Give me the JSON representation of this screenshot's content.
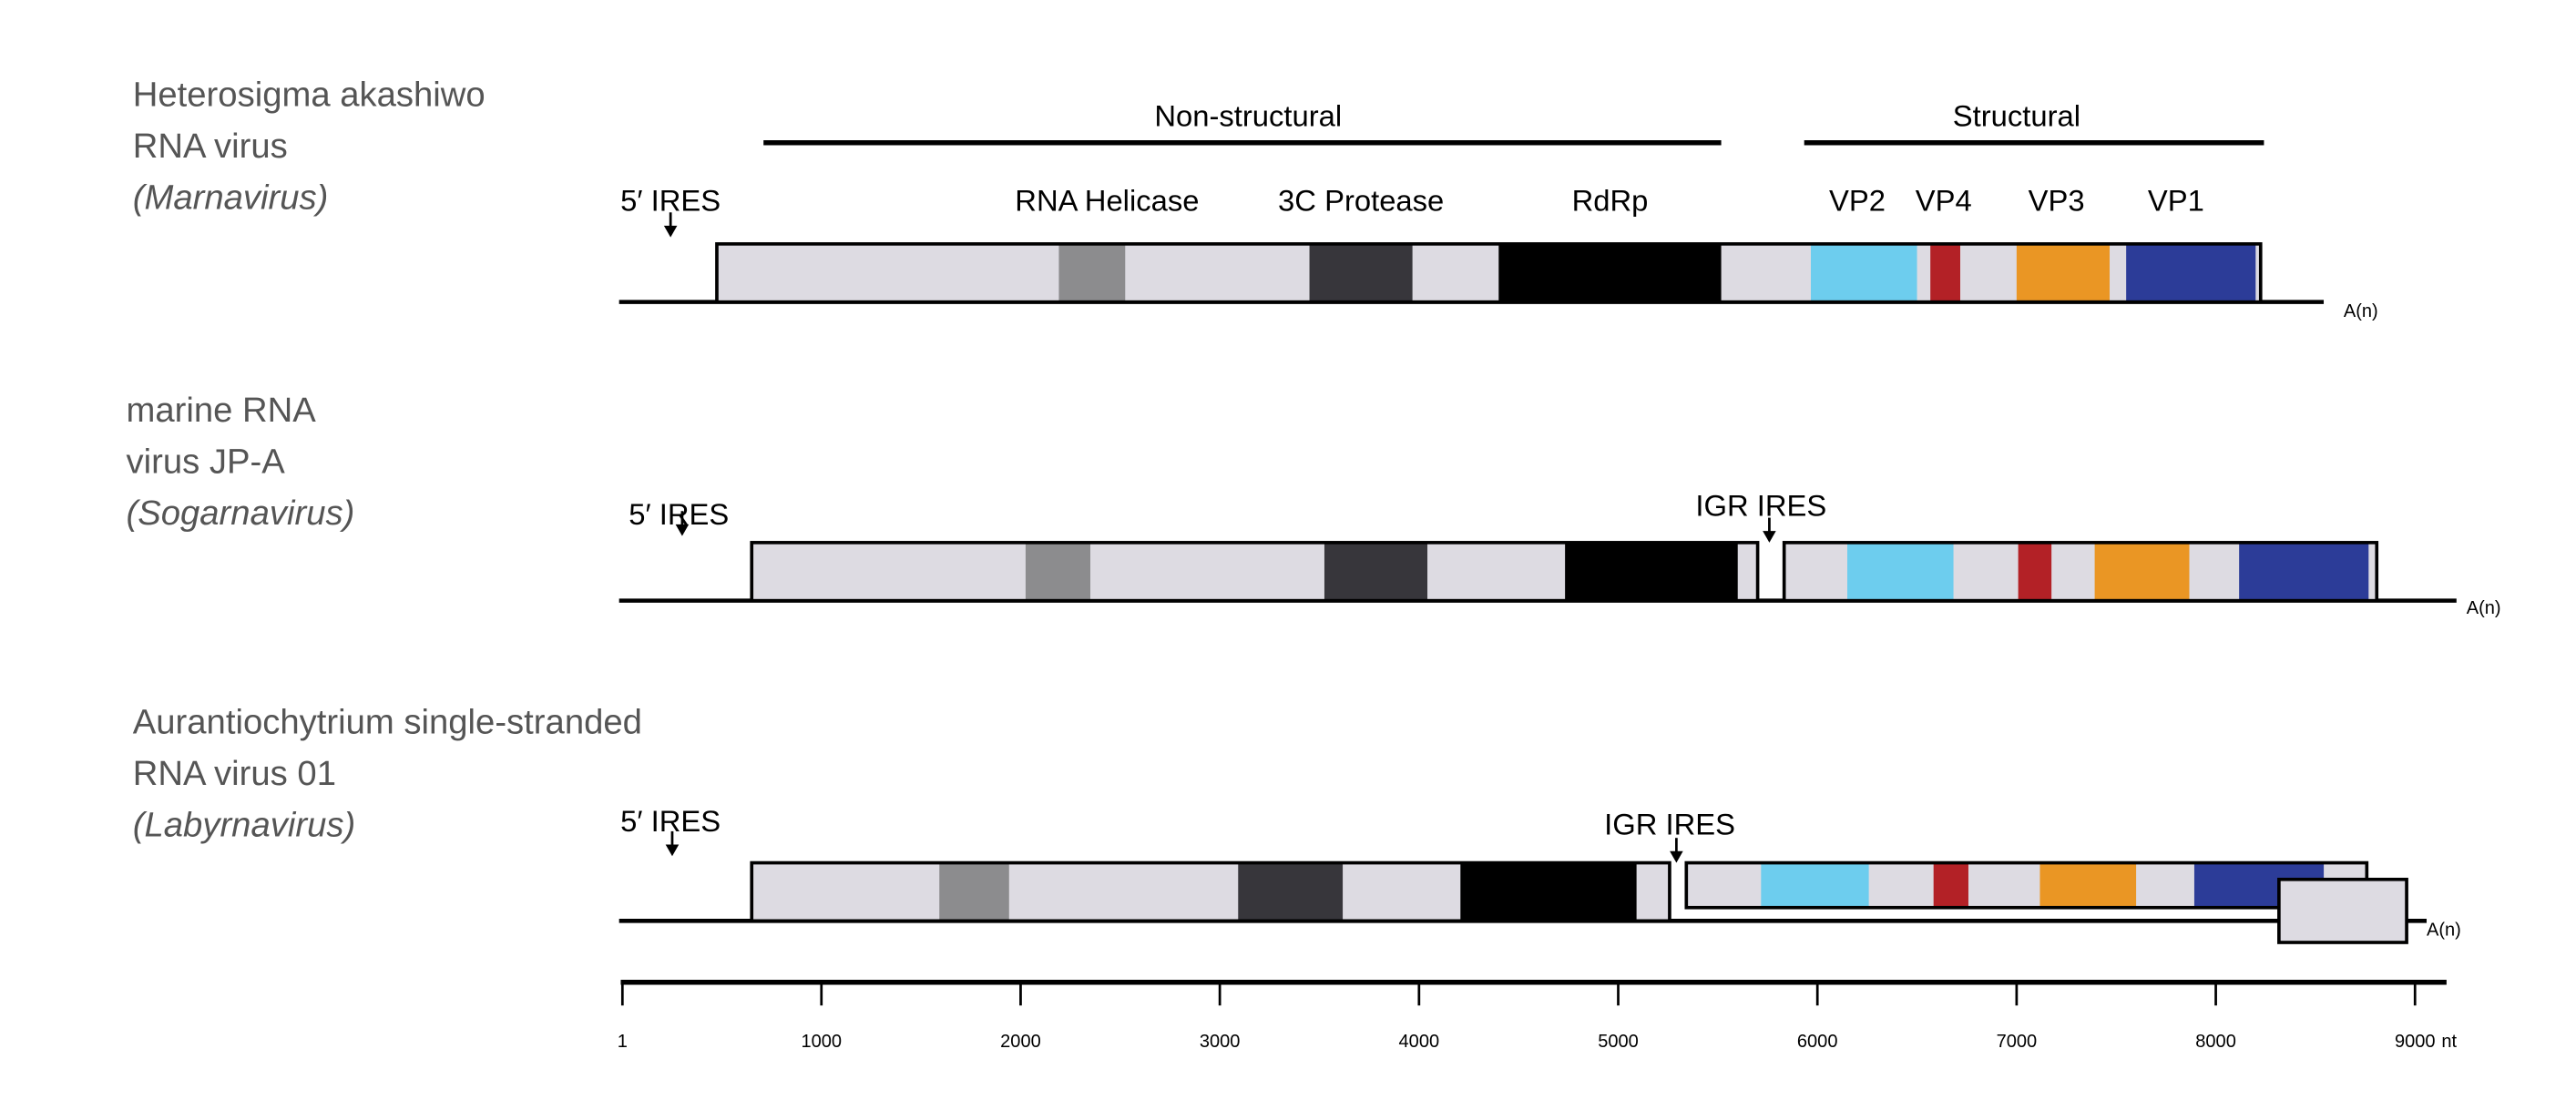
{
  "colors": {
    "backbone": "#dddbe2",
    "helicase": "#8c8c8e",
    "protease": "#37363b",
    "rdrp": "#000000",
    "vp2": "#6dcdee",
    "vp4": "#b32126",
    "vp3": "#ea9624",
    "vp1": "#2c3c98"
  },
  "headers": {
    "nonstructural": "Non-structural",
    "structural": "Structural"
  },
  "domain_labels": {
    "helicase": "RNA Helicase",
    "protease": "3C Protease",
    "rdrp": "RdRp",
    "vp2": "VP2",
    "vp4": "VP4",
    "vp3": "VP3",
    "vp1": "VP1"
  },
  "genomes": [
    {
      "name_lines": [
        "Heterosigma akashiwo",
        "RNA virus"
      ],
      "genus": "(Marnavirus)",
      "ires5": "5′ IRES",
      "polya": "A(n)",
      "orfs": [
        {
          "start": 475,
          "end": 8225,
          "domains": [
            {
              "type": "helicase",
              "start": 2192,
              "end": 2525
            },
            {
              "type": "protease",
              "start": 3450,
              "end": 3967
            },
            {
              "type": "rdrp",
              "start": 4400,
              "end": 5517
            },
            {
              "type": "vp2",
              "start": 5967,
              "end": 6500
            },
            {
              "type": "vp4",
              "start": 6567,
              "end": 6717
            },
            {
              "type": "vp3",
              "start": 7000,
              "end": 7467
            },
            {
              "type": "vp1",
              "start": 7550,
              "end": 8200
            }
          ]
        }
      ]
    },
    {
      "name_lines": [
        "marine RNA",
        "virus JP-A"
      ],
      "genus": "(Sogarnavirus)",
      "ires5": "5′ IRES",
      "igr": "IGR IRES",
      "polya": "A(n)",
      "orfs": [
        {
          "start": 650,
          "end": 5700,
          "domains": [
            {
              "type": "helicase",
              "start": 2025,
              "end": 2350
            },
            {
              "type": "protease",
              "start": 3525,
              "end": 4042
            },
            {
              "type": "rdrp",
              "start": 4733,
              "end": 5600
            }
          ]
        },
        {
          "start": 5833,
          "end": 8808,
          "domains": [
            {
              "type": "vp2",
              "start": 6150,
              "end": 6683
            },
            {
              "type": "vp4",
              "start": 7008,
              "end": 7175
            },
            {
              "type": "vp3",
              "start": 7392,
              "end": 7867
            },
            {
              "type": "vp1",
              "start": 8117,
              "end": 8767
            }
          ]
        }
      ]
    },
    {
      "name_lines": [
        "Aurantiochytrium single-stranded",
        "RNA virus 01"
      ],
      "genus": "(Labyrnavirus)",
      "ires5": "5′ IRES",
      "igr": "IGR IRES",
      "polya": "A(n)",
      "orfs": [
        {
          "start": 650,
          "end": 5258,
          "domains": [
            {
              "type": "helicase",
              "start": 1592,
              "end": 1942
            },
            {
              "type": "protease",
              "start": 3092,
              "end": 3617
            },
            {
              "type": "rdrp",
              "start": 4208,
              "end": 5092
            }
          ]
        },
        {
          "start": 5342,
          "end": 8758,
          "domains": [
            {
              "type": "vp2",
              "start": 5717,
              "end": 6258
            },
            {
              "type": "vp4",
              "start": 6583,
              "end": 6758
            },
            {
              "type": "vp3",
              "start": 7117,
              "end": 7600
            },
            {
              "type": "vp1",
              "start": 7892,
              "end": 8542
            }
          ]
        },
        {
          "start": 8317,
          "end": 8958,
          "domains": [],
          "offset": true
        }
      ]
    }
  ],
  "scale": {
    "ticks": [
      "1",
      "1000",
      "2000",
      "3000",
      "4000",
      "5000",
      "6000",
      "7000",
      "8000",
      "9000"
    ],
    "tick_values": [
      1,
      1000,
      2000,
      3000,
      4000,
      5000,
      6000,
      7000,
      8000,
      9000
    ],
    "unit": "nt"
  }
}
